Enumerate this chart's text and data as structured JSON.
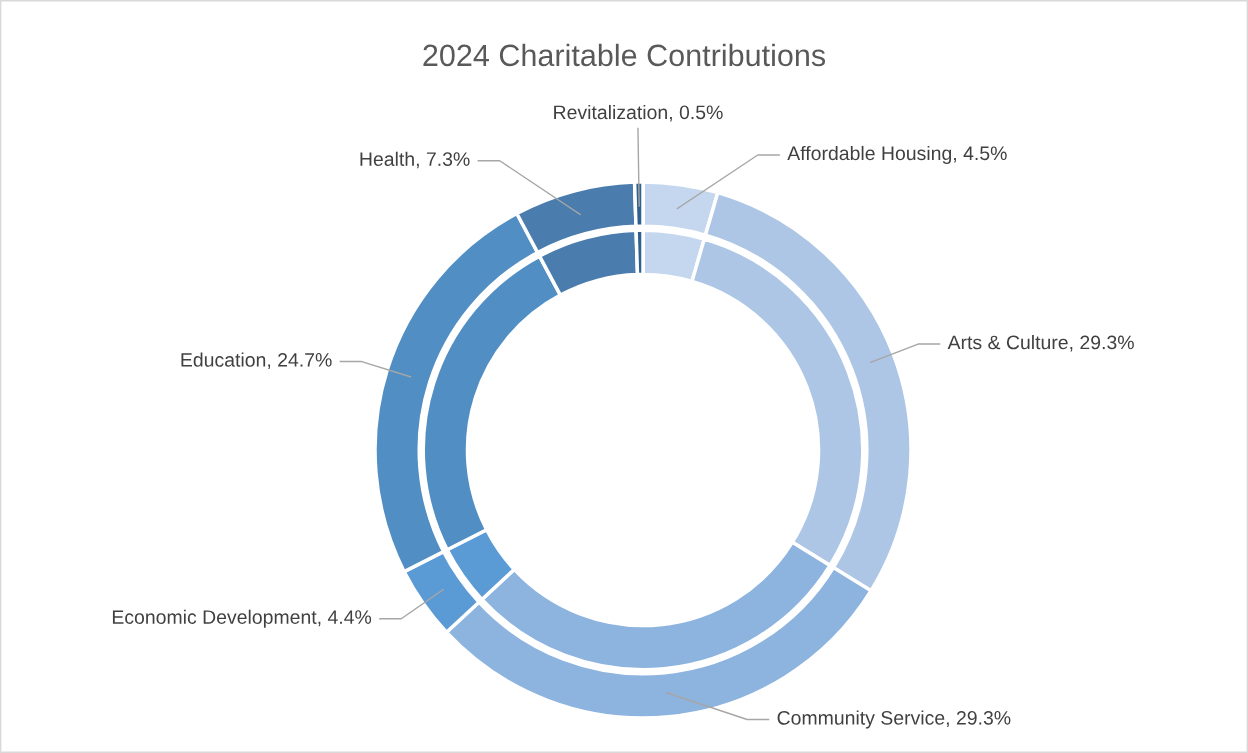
{
  "chart_data": {
    "type": "donut",
    "title": "2024 Charitable Contributions",
    "categories": [
      "Affordable Housing",
      "Arts & Culture",
      "Community Service",
      "Economic Development",
      "Education",
      "Health",
      "Revitalization"
    ],
    "series": [
      {
        "values": [
          4.5,
          29.3,
          29.3,
          4.4,
          24.7,
          7.3,
          0.5
        ],
        "value_labels": [
          "4.5%",
          "29.3%",
          "29.3%",
          "4.4%",
          "24.7%",
          "7.3%",
          "0.5%"
        ]
      },
      {
        "values": [
          4.5,
          29.3,
          29.3,
          4.4,
          24.7,
          7.3,
          0.5
        ]
      }
    ],
    "colors": [
      "#c5d7ee",
      "#adc6e6",
      "#8db3df",
      "#5b9bd5",
      "#518ec4",
      "#4a7dae",
      "#2e5f8f"
    ]
  }
}
